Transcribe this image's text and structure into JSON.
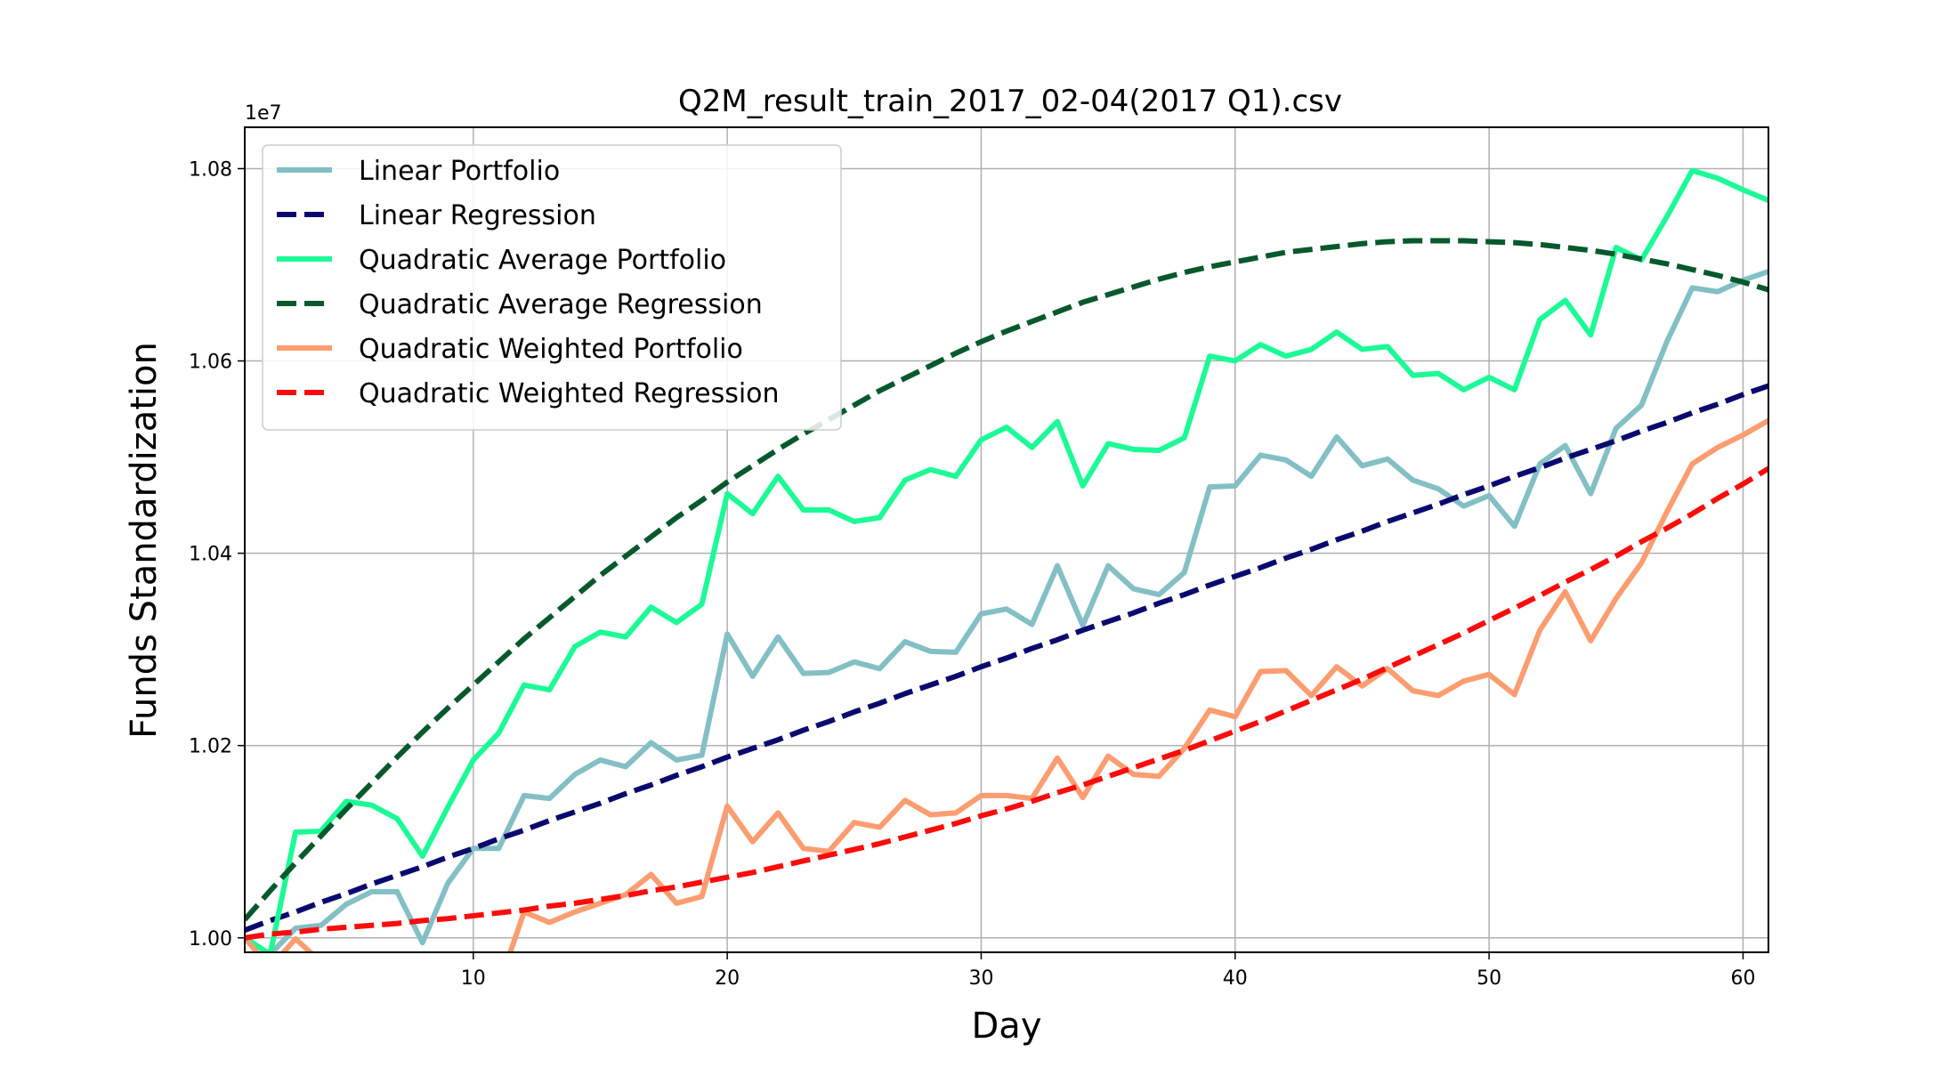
{
  "chart_data": {
    "type": "line",
    "title": "Q2M_result_train_2017_02-04(2017 Q1).csv",
    "xlabel": "Day",
    "ylabel": "Funds Standardization",
    "y_offset_label": "1e7",
    "xlim": [
      1,
      61
    ],
    "ylim": [
      0.9985,
      1.0843
    ],
    "x_ticks": [
      10,
      20,
      30,
      40,
      50,
      60
    ],
    "x_tick_labels": [
      "10",
      "20",
      "30",
      "40",
      "50",
      "60"
    ],
    "y_ticks": [
      1.0,
      1.02,
      1.04,
      1.06,
      1.08
    ],
    "y_tick_labels": [
      "1.00",
      "1.02",
      "1.04",
      "1.06",
      "1.08"
    ],
    "grid": true,
    "legend_position": "top-left",
    "x": [
      1,
      2,
      3,
      4,
      5,
      6,
      7,
      8,
      9,
      10,
      11,
      12,
      13,
      14,
      15,
      16,
      17,
      18,
      19,
      20,
      21,
      22,
      23,
      24,
      25,
      26,
      27,
      28,
      29,
      30,
      31,
      32,
      33,
      34,
      35,
      36,
      37,
      38,
      39,
      40,
      41,
      42,
      43,
      44,
      45,
      46,
      47,
      48,
      49,
      50,
      51,
      52,
      53,
      54,
      55,
      56,
      57,
      58,
      59,
      60,
      61
    ],
    "series": [
      {
        "name": "Linear Portfolio",
        "color": "#83bfc4",
        "style": "solid",
        "values": [
          1.0,
          0.9983,
          1.001,
          1.0013,
          1.0035,
          1.0048,
          1.0048,
          0.9995,
          1.0057,
          1.0093,
          1.0093,
          1.0148,
          1.0145,
          1.017,
          1.0185,
          1.0178,
          1.0203,
          1.0185,
          1.019,
          1.0316,
          1.0272,
          1.0313,
          1.0275,
          1.0276,
          1.0287,
          1.028,
          1.0308,
          1.0298,
          1.0297,
          1.0337,
          1.0342,
          1.0326,
          1.0387,
          1.0325,
          1.0387,
          1.0363,
          1.0357,
          1.038,
          1.0469,
          1.047,
          1.0502,
          1.0497,
          1.048,
          1.0521,
          1.0491,
          1.0498,
          1.0476,
          1.0467,
          1.0449,
          1.046,
          1.0428,
          1.0493,
          1.0512,
          1.0462,
          1.053,
          1.0554,
          1.062,
          1.0676,
          1.0672,
          1.0684,
          1.0693
        ]
      },
      {
        "name": "Linear Regression",
        "color": "#0a0a6e",
        "style": "dashed",
        "values": [
          1.0008,
          1.0018,
          1.0027,
          1.0037,
          1.0046,
          1.0056,
          1.0065,
          1.0074,
          1.0084,
          1.0093,
          1.0103,
          1.0112,
          1.0122,
          1.0131,
          1.014,
          1.015,
          1.0159,
          1.0169,
          1.0178,
          1.0188,
          1.0197,
          1.0206,
          1.0216,
          1.0225,
          1.0235,
          1.0244,
          1.0254,
          1.0263,
          1.0272,
          1.0282,
          1.0291,
          1.0301,
          1.031,
          1.032,
          1.0329,
          1.0338,
          1.0348,
          1.0357,
          1.0367,
          1.0376,
          1.0385,
          1.0395,
          1.0404,
          1.0414,
          1.0423,
          1.0433,
          1.0442,
          1.0451,
          1.0461,
          1.047,
          1.048,
          1.0489,
          1.0499,
          1.0508,
          1.0517,
          1.0527,
          1.0536,
          1.0546,
          1.0555,
          1.0565,
          1.0574
        ]
      },
      {
        "name": "Quadratic Average Portfolio",
        "color": "#1cfa96",
        "style": "solid",
        "values": [
          1.0,
          0.9983,
          1.011,
          1.0111,
          1.0142,
          1.0138,
          1.0124,
          1.0085,
          1.0136,
          1.0185,
          1.0213,
          1.0263,
          1.0258,
          1.0303,
          1.0318,
          1.0313,
          1.0344,
          1.0328,
          1.0347,
          1.0462,
          1.0441,
          1.048,
          1.0445,
          1.0445,
          1.0433,
          1.0437,
          1.0476,
          1.0487,
          1.048,
          1.0518,
          1.0531,
          1.051,
          1.0537,
          1.047,
          1.0514,
          1.0508,
          1.0507,
          1.052,
          1.0605,
          1.06,
          1.0617,
          1.0605,
          1.0612,
          1.063,
          1.0612,
          1.0615,
          1.0585,
          1.0587,
          1.057,
          1.0583,
          1.057,
          1.0643,
          1.0663,
          1.0627,
          1.0718,
          1.0705,
          1.075,
          1.0798,
          1.079,
          1.0778,
          1.0767
        ]
      },
      {
        "name": "Quadratic Average Regression",
        "color": "#07592d",
        "style": "dashed",
        "values": [
          1.0019,
          1.0049,
          1.0078,
          1.0106,
          1.0134,
          1.0161,
          1.0188,
          1.0214,
          1.0239,
          1.0263,
          1.0287,
          1.0311,
          1.0333,
          1.0355,
          1.0377,
          1.0397,
          1.0417,
          1.0437,
          1.0455,
          1.0474,
          1.0491,
          1.0508,
          1.0524,
          1.0539,
          1.0554,
          1.0569,
          1.0582,
          1.0595,
          1.0608,
          1.062,
          1.0631,
          1.0641,
          1.0651,
          1.0661,
          1.0669,
          1.0677,
          1.0685,
          1.0692,
          1.0698,
          1.0703,
          1.0708,
          1.0713,
          1.0716,
          1.0719,
          1.0722,
          1.0724,
          1.0725,
          1.0725,
          1.0725,
          1.0724,
          1.0723,
          1.0721,
          1.0718,
          1.0715,
          1.0711,
          1.0706,
          1.0701,
          1.0695,
          1.0689,
          1.0682,
          1.0674
        ]
      },
      {
        "name": "Quadratic Weighted Portfolio",
        "color": "#fb9d70",
        "style": "solid",
        "values": [
          1.0,
          0.9969,
          0.9999,
          0.9975,
          0.9975,
          0.998,
          0.997,
          0.991,
          0.996,
          0.9965,
          0.995,
          1.0027,
          1.0016,
          1.0027,
          1.0036,
          1.0045,
          1.0066,
          1.0036,
          1.0043,
          1.0137,
          1.01,
          1.013,
          1.0093,
          1.009,
          1.012,
          1.0115,
          1.0143,
          1.0128,
          1.013,
          1.0148,
          1.0148,
          1.0145,
          1.0187,
          1.0146,
          1.0189,
          1.017,
          1.0168,
          1.0197,
          1.0237,
          1.023,
          1.0277,
          1.0278,
          1.0252,
          1.0282,
          1.0262,
          1.028,
          1.0257,
          1.0252,
          1.0267,
          1.0274,
          1.0253,
          1.032,
          1.036,
          1.0309,
          1.0353,
          1.039,
          1.0443,
          1.0493,
          1.051,
          1.0523,
          1.0538
        ]
      },
      {
        "name": "Quadratic Weighted Regression",
        "color": "#fa0c0c",
        "style": "dashed",
        "values": [
          1.0,
          1.0004,
          1.0006,
          1.0009,
          1.0011,
          1.0013,
          1.0015,
          1.0018,
          1.002,
          1.0023,
          1.0026,
          1.0029,
          1.0033,
          1.0036,
          1.004,
          1.0044,
          1.0049,
          1.0053,
          1.0058,
          1.0063,
          1.0068,
          1.0074,
          1.008,
          1.0086,
          1.0092,
          1.0098,
          1.0105,
          1.0112,
          1.0119,
          1.0127,
          1.0134,
          1.0142,
          1.0151,
          1.0159,
          1.0168,
          1.0177,
          1.0186,
          1.0195,
          1.0205,
          1.0215,
          1.0225,
          1.0236,
          1.0247,
          1.0258,
          1.0269,
          1.0281,
          1.0293,
          1.0305,
          1.0317,
          1.033,
          1.0343,
          1.0356,
          1.037,
          1.0383,
          1.0397,
          1.0412,
          1.0426,
          1.0441,
          1.0457,
          1.0472,
          1.0488
        ]
      }
    ]
  }
}
